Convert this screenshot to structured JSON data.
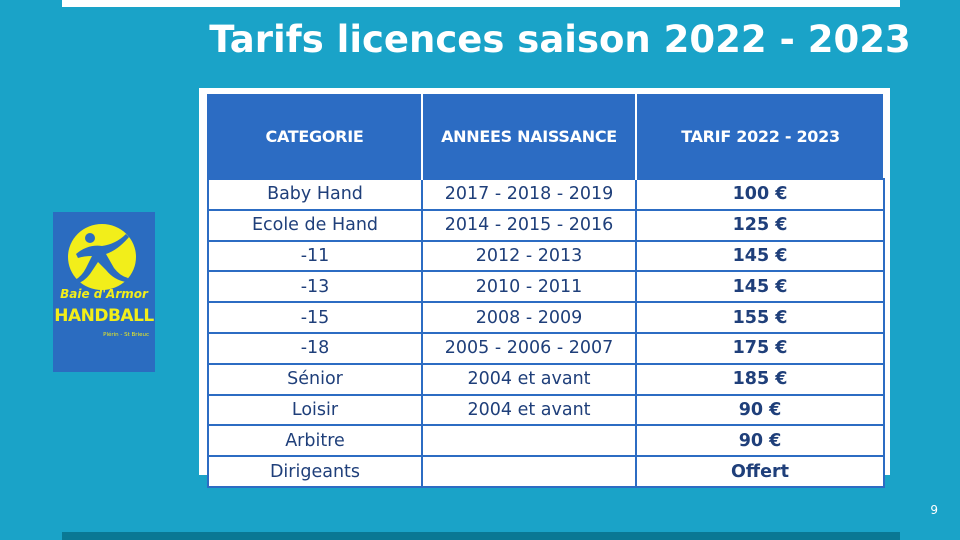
{
  "slide": {
    "title": "Tarifs licences saison 2022 - 2023",
    "page_number": "9"
  },
  "logo": {
    "line1": "Baie d'Armor",
    "line2": "HANDBALL",
    "line3": "Plérin - St Brieuc"
  },
  "table": {
    "headers": [
      "CATEGORIE",
      "ANNEES NAISSANCE",
      "TARIF 2022 - 2023"
    ],
    "rows": [
      {
        "categorie": "Baby Hand",
        "annees": "2017 - 2018 - 2019",
        "tarif": "100 €"
      },
      {
        "categorie": "Ecole de Hand",
        "annees": "2014 - 2015 - 2016",
        "tarif": "125 €"
      },
      {
        "categorie": "-11",
        "annees": "2012 - 2013",
        "tarif": "145 €"
      },
      {
        "categorie": "-13",
        "annees": "2010 - 2011",
        "tarif": "145 €"
      },
      {
        "categorie": "-15",
        "annees": "2008 - 2009",
        "tarif": "155 €"
      },
      {
        "categorie": "-18",
        "annees": "2005 - 2006 - 2007",
        "tarif": "175 €"
      },
      {
        "categorie": "Sénior",
        "annees": "2004 et avant",
        "tarif": "185 €"
      },
      {
        "categorie": "Loisir",
        "annees": "2004 et avant",
        "tarif": "90 €"
      },
      {
        "categorie": "Arbitre",
        "annees": "",
        "tarif": "90 €"
      },
      {
        "categorie": "Dirigeants",
        "annees": "",
        "tarif": "Offert"
      }
    ]
  },
  "colors": {
    "background": "#1aa3c8",
    "table_header": "#2c6cc3",
    "logo_background": "#2b6cc0",
    "logo_yellow": "#f2ee1a"
  }
}
